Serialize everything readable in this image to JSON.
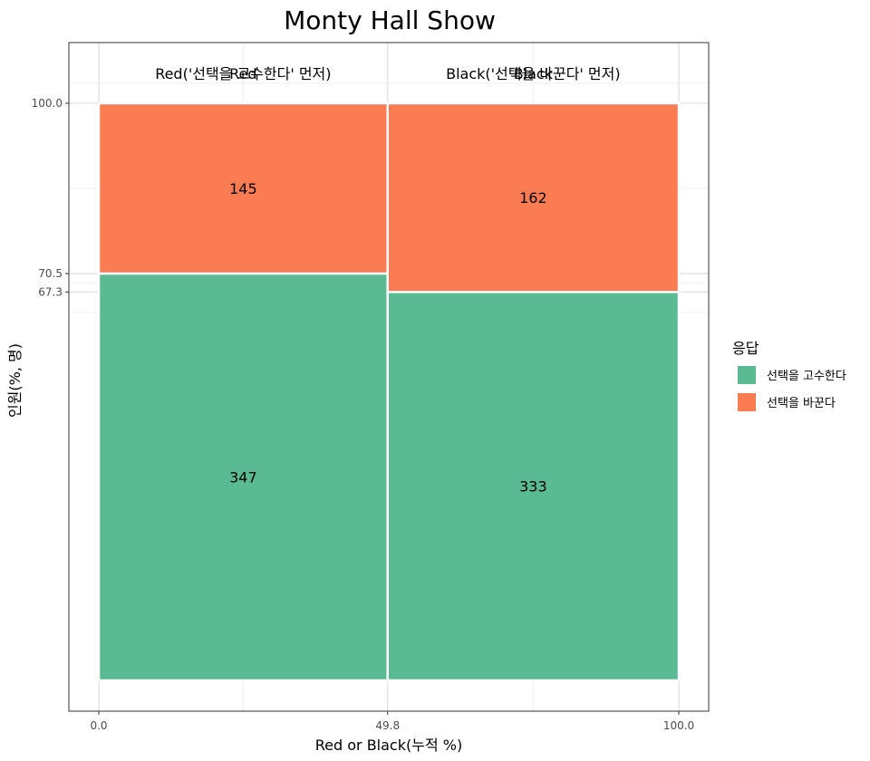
{
  "chart_data": {
    "type": "mosaic",
    "title": "Monty Hall Show",
    "xlabel": "Red or Black(누적 %)",
    "ylabel": "인원(%, 명)",
    "xlim": [
      0,
      100
    ],
    "ylim": [
      0,
      100
    ],
    "x_ticks": [
      "0.0",
      "49.8",
      "100.0"
    ],
    "y_ticks": [
      "100.0",
      "70.5",
      "67.3"
    ],
    "grid": true,
    "legend": {
      "title": "응답",
      "position": "right",
      "entries": [
        {
          "label": "선택을 고수한다",
          "color": "#59BA93"
        },
        {
          "label": "선택을 바꾼다",
          "color": "#FB7B52"
        }
      ]
    },
    "columns": [
      {
        "label": "Red('선택을 고수한다' 먼저)",
        "overlap_label": "Red",
        "x_start": 0,
        "x_end": 49.8,
        "segments": [
          {
            "series": "선택을 고수한다",
            "count": "347",
            "pct": 70.5
          },
          {
            "series": "선택을 바꾼다",
            "count": "145",
            "pct": 29.5
          }
        ]
      },
      {
        "label": "Black('선택을 바꾼다' 먼저)",
        "overlap_label": "Black",
        "x_start": 49.8,
        "x_end": 100,
        "segments": [
          {
            "series": "선택을 고수한다",
            "count": "333",
            "pct": 67.3
          },
          {
            "series": "선택을 바꾼다",
            "count": "162",
            "pct": 32.7
          }
        ]
      }
    ]
  }
}
